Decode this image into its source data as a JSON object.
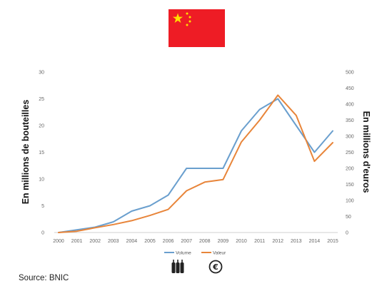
{
  "source_text": "Source: BNIC",
  "chart_data": {
    "type": "line",
    "x": [
      "2000",
      "2001",
      "2002",
      "2003",
      "2004",
      "2005",
      "2006",
      "2007",
      "2008",
      "2009",
      "2010",
      "2011",
      "2012",
      "2013",
      "2014",
      "2015"
    ],
    "ylabel_left": "En millions de bouteilles",
    "ylabel_right": "En millions d'euros",
    "ylim_left": [
      0,
      30
    ],
    "ylim_right": [
      0,
      500
    ],
    "yticks_left": [
      "0",
      "5",
      "10",
      "15",
      "20",
      "25",
      "30"
    ],
    "yticks_right": [
      "0",
      "50",
      "100",
      "150",
      "200",
      "250",
      "300",
      "350",
      "400",
      "450",
      "500"
    ],
    "series": [
      {
        "name": "Volume",
        "axis": "left",
        "color": "#6a9fce",
        "values": [
          0,
          0.5,
          1,
          2,
          4,
          5,
          7,
          12,
          12,
          12,
          19,
          23,
          25,
          20,
          15,
          19
        ]
      },
      {
        "name": "Valeur",
        "axis": "right",
        "color": "#e8853a",
        "values": [
          0,
          4,
          15,
          25,
          37,
          53,
          72,
          130,
          157,
          165,
          282,
          350,
          428,
          365,
          222,
          280
        ]
      }
    ],
    "grid": false,
    "legend_position": "bottom"
  },
  "colors": {
    "flag_red": "#ee1c25",
    "flag_yellow": "#ffde00",
    "axis": "#d0d0d0"
  },
  "icons": {
    "bottles": "wine-bottles-icon",
    "euro": "euro-icon",
    "flag": "china-flag-icon"
  }
}
